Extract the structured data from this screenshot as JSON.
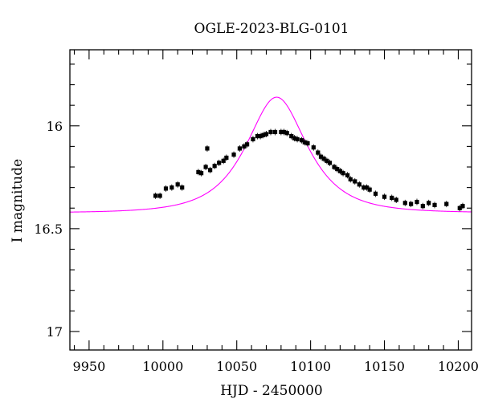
{
  "chart_data": {
    "type": "scatter",
    "title": "OGLE-2023-BLG-0101",
    "xlabel": "HJD - 2450000",
    "ylabel": "I magnitude",
    "xlim": [
      9937,
      10209
    ],
    "ylim": [
      17.09,
      15.63
    ],
    "y_inverted": true,
    "grid": false,
    "x_ticks": [
      9950,
      10000,
      10050,
      10100,
      10150,
      10200
    ],
    "y_ticks": [
      16,
      16.5,
      17
    ],
    "x_tick_labels": [
      "9950",
      "10000",
      "10050",
      "10100",
      "10150",
      "10200"
    ],
    "y_tick_labels": [
      "16",
      "16.5",
      "17"
    ],
    "x_minor_step": 10,
    "y_minor_step": 0.1,
    "model": {
      "color": "#ff00ff",
      "t0": 10077,
      "u0": 0.7,
      "tE": 30,
      "I_base": 16.423
    },
    "points": {
      "color": "#000000",
      "x": [
        9995,
        9998,
        10002,
        10006,
        10010,
        10013,
        10024,
        10026,
        10029,
        10030,
        10032,
        10035,
        10038,
        10041,
        10043,
        10048,
        10052,
        10055,
        10057,
        10061,
        10064,
        10066,
        10068,
        10070,
        10073,
        10076,
        10080,
        10082,
        10084,
        10087,
        10089,
        10091,
        10094,
        10096,
        10098,
        10102,
        10105,
        10107,
        10109,
        10111,
        10113,
        10116,
        10118,
        10120,
        10122,
        10125,
        10127,
        10130,
        10133,
        10136,
        10138,
        10140,
        10144,
        10150,
        10155,
        10158,
        10164,
        10168,
        10172,
        10176,
        10180,
        10184,
        10192,
        10201,
        10203
      ],
      "y": [
        16.34,
        16.34,
        16.305,
        16.3,
        16.285,
        16.3,
        16.225,
        16.23,
        16.2,
        16.11,
        16.215,
        16.195,
        16.18,
        16.17,
        16.155,
        16.14,
        16.11,
        16.1,
        16.09,
        16.065,
        16.05,
        16.05,
        16.045,
        16.04,
        16.03,
        16.03,
        16.03,
        16.03,
        16.035,
        16.05,
        16.06,
        16.065,
        16.07,
        16.08,
        16.085,
        16.105,
        16.13,
        16.15,
        16.16,
        16.17,
        16.18,
        16.2,
        16.21,
        16.22,
        16.23,
        16.24,
        16.26,
        16.27,
        16.285,
        16.3,
        16.3,
        16.31,
        16.33,
        16.345,
        16.35,
        16.36,
        16.375,
        16.38,
        16.37,
        16.39,
        16.375,
        16.385,
        16.38,
        16.4,
        16.39
      ]
    }
  }
}
